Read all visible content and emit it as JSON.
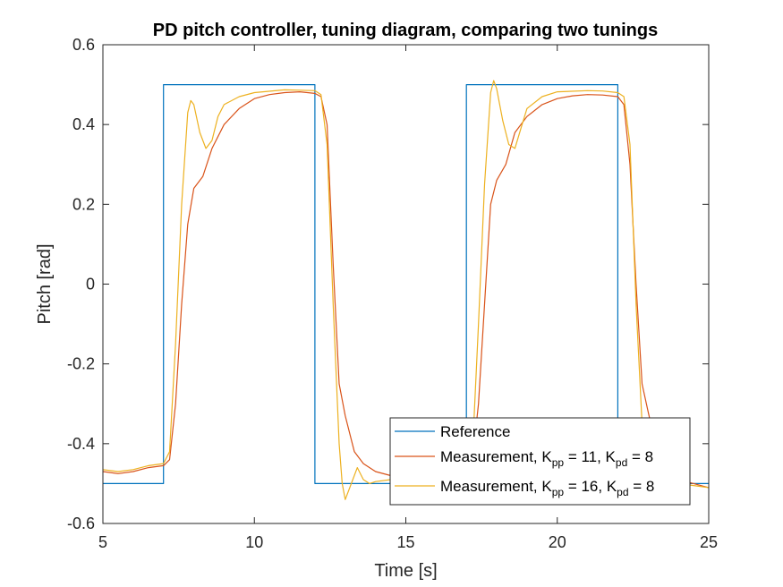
{
  "chart_data": {
    "type": "line",
    "title": "PD pitch controller, tuning diagram, comparing two tunings",
    "xlabel": "Time [s]",
    "ylabel": "Pitch [rad]",
    "xlim": [
      5,
      25
    ],
    "ylim": [
      -0.6,
      0.6
    ],
    "xticks": [
      5,
      10,
      15,
      20,
      25
    ],
    "xtick_labels": [
      "5",
      "10",
      "15",
      "20",
      "25"
    ],
    "yticks": [
      -0.6,
      -0.4,
      -0.2,
      0,
      0.2,
      0.4,
      0.6
    ],
    "ytick_labels": [
      "-0.6",
      "-0.4",
      "-0.2",
      "0",
      "0.2",
      "0.4",
      "0.6"
    ],
    "grid": false,
    "legend_position": "bottom-right",
    "series": [
      {
        "name": "Reference",
        "color": "#0072BD",
        "x": [
          5,
          7,
          7,
          12,
          12,
          17,
          17,
          22,
          22,
          25
        ],
        "y": [
          -0.5,
          -0.5,
          0.5,
          0.5,
          -0.5,
          -0.5,
          0.5,
          0.5,
          -0.5,
          -0.5
        ]
      },
      {
        "name": "Measurement, K_pp = 11, K_pd = 8",
        "legend": {
          "prefix": "Measurement, K",
          "sub1": "pp",
          "mid": " = 11, K",
          "sub2": "pd",
          "suffix": " = 8"
        },
        "color": "#D95319",
        "x": [
          5,
          5.5,
          6,
          6.5,
          7,
          7.2,
          7.4,
          7.6,
          7.8,
          8.0,
          8.3,
          8.6,
          9.0,
          9.5,
          10,
          10.5,
          11,
          11.5,
          12,
          12.2,
          12.4,
          12.6,
          12.8,
          13.0,
          13.3,
          13.6,
          14.0,
          14.5,
          15,
          15.5,
          16,
          16.5,
          17,
          17.2,
          17.4,
          17.6,
          17.8,
          18.0,
          18.3,
          18.6,
          19.0,
          19.5,
          20,
          20.5,
          21,
          21.5,
          22,
          22.2,
          22.4,
          22.6,
          22.8,
          23.0,
          23.3,
          23.6,
          24.0,
          24.5,
          25
        ],
        "y": [
          -0.47,
          -0.475,
          -0.47,
          -0.46,
          -0.455,
          -0.44,
          -0.3,
          -0.05,
          0.15,
          0.24,
          0.27,
          0.34,
          0.4,
          0.44,
          0.465,
          0.475,
          0.48,
          0.482,
          0.478,
          0.47,
          0.4,
          0.05,
          -0.25,
          -0.33,
          -0.42,
          -0.45,
          -0.47,
          -0.48,
          -0.49,
          -0.495,
          -0.49,
          -0.485,
          -0.475,
          -0.44,
          -0.3,
          -0.05,
          0.2,
          0.26,
          0.3,
          0.38,
          0.42,
          0.45,
          0.465,
          0.472,
          0.475,
          0.474,
          0.47,
          0.45,
          0.3,
          0.0,
          -0.25,
          -0.32,
          -0.42,
          -0.47,
          -0.49,
          -0.5,
          -0.51
        ]
      },
      {
        "name": "Measurement, K_pp = 16, K_pd = 8",
        "legend": {
          "prefix": "Measurement, K",
          "sub1": "pp",
          "mid": " = 16, K",
          "sub2": "pd",
          "suffix": " = 8"
        },
        "color": "#EDB120",
        "x": [
          5,
          5.5,
          6,
          6.5,
          7,
          7.2,
          7.4,
          7.6,
          7.8,
          7.9,
          8.0,
          8.2,
          8.4,
          8.6,
          8.8,
          9.0,
          9.5,
          10,
          11,
          11.5,
          12,
          12.2,
          12.4,
          12.6,
          12.8,
          12.9,
          13.0,
          13.2,
          13.4,
          13.6,
          13.8,
          14.0,
          14.5,
          15,
          16,
          16.5,
          17,
          17.2,
          17.4,
          17.6,
          17.8,
          17.9,
          18.0,
          18.2,
          18.4,
          18.6,
          18.8,
          19.0,
          19.5,
          20,
          21,
          21.5,
          22,
          22.2,
          22.4,
          22.6,
          22.8,
          23.0,
          23.3,
          23.6,
          24,
          24.5,
          25
        ],
        "y": [
          -0.465,
          -0.47,
          -0.465,
          -0.455,
          -0.45,
          -0.42,
          -0.15,
          0.2,
          0.43,
          0.46,
          0.45,
          0.38,
          0.34,
          0.36,
          0.42,
          0.45,
          0.47,
          0.48,
          0.487,
          0.486,
          0.485,
          0.475,
          0.35,
          -0.05,
          -0.4,
          -0.5,
          -0.54,
          -0.5,
          -0.46,
          -0.49,
          -0.5,
          -0.495,
          -0.49,
          -0.48,
          -0.47,
          -0.47,
          -0.47,
          -0.42,
          -0.1,
          0.25,
          0.48,
          0.51,
          0.49,
          0.41,
          0.35,
          0.34,
          0.39,
          0.44,
          0.47,
          0.482,
          0.485,
          0.484,
          0.48,
          0.47,
          0.35,
          -0.05,
          -0.35,
          -0.45,
          -0.49,
          -0.495,
          -0.5,
          -0.505,
          -0.51
        ]
      }
    ]
  }
}
